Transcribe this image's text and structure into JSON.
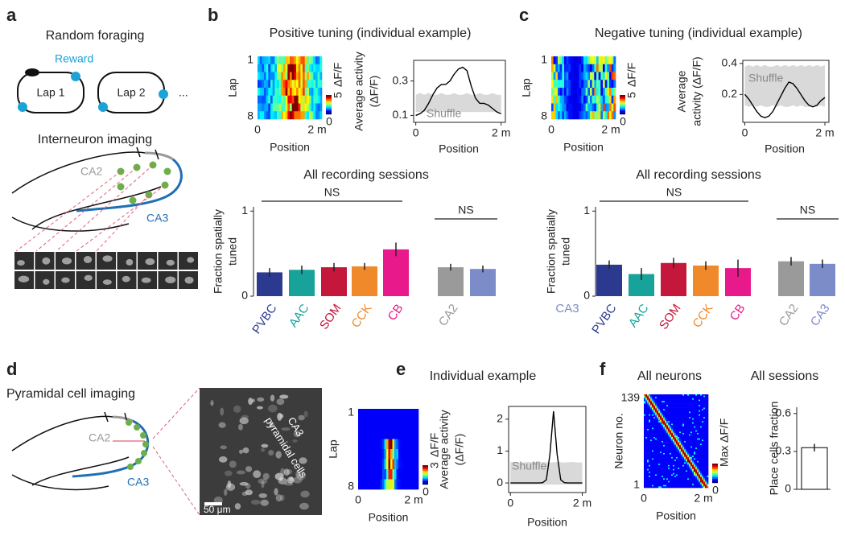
{
  "panel_labels": [
    "a",
    "b",
    "c",
    "d",
    "e",
    "f"
  ],
  "panel_a": {
    "title": "Random foraging",
    "reward": "Reward",
    "laps": [
      "Lap 1",
      "Lap 2"
    ],
    "ellipsis": "...",
    "subtitle": "Interneuron imaging",
    "regions": [
      "CA2",
      "CA3"
    ]
  },
  "panel_b": {
    "title": "Positive tuning (individual example)",
    "heatmap": {
      "ylabel": "Lap",
      "yticks": [
        "1",
        "8"
      ],
      "xticks": [
        "0",
        "2 m"
      ],
      "xlabel": "Position",
      "colorbar": [
        "5",
        "ΔF/F",
        "0"
      ]
    }
  },
  "panel_c": {
    "title": "Negative tuning (individual example)",
    "heatmap": {
      "ylabel": "Lap",
      "yticks": [
        "1",
        "8"
      ],
      "xticks": [
        "0",
        "2 m"
      ],
      "xlabel": "Position",
      "colorbar": [
        "5",
        "ΔF/F",
        "0"
      ]
    }
  },
  "panel_d": {
    "title": "Pyramidal cell imaging",
    "regions": [
      "CA2",
      "CA3"
    ],
    "image_label": [
      "CA3",
      "pyramidal cells"
    ],
    "scale_bar": "50 μm"
  },
  "panel_e": {
    "title": "Individual example",
    "heatmap": {
      "ylabel": "Lap",
      "yticks": [
        "1",
        "8"
      ],
      "xticks": [
        "0",
        "2 m"
      ],
      "xlabel": "Position",
      "colorbar": [
        "3",
        "ΔF/F",
        "0"
      ]
    }
  },
  "panel_f": {
    "title": "All neurons",
    "heatmap": {
      "ylabel": "Neuron no.",
      "yticks": [
        "139",
        "1"
      ],
      "xticks": [
        "0",
        "2 m"
      ],
      "xlabel": "Position",
      "colorbar": [
        "Max",
        "ΔF/F",
        "0"
      ]
    }
  },
  "chart_data": [
    {
      "type": "line",
      "ylabel": [
        "Average activity",
        "(ΔF/F)"
      ],
      "xlabel": "Position",
      "x": [
        0,
        0.1,
        0.2,
        0.3,
        0.4,
        0.5,
        0.6,
        0.7,
        0.8,
        0.9,
        1.0,
        1.1,
        1.2,
        1.3,
        1.4,
        1.5,
        1.6,
        1.7,
        1.8,
        1.9,
        2.0
      ],
      "series": [
        {
          "color": "#000000",
          "values": [
            0.1,
            0.11,
            0.13,
            0.17,
            0.22,
            0.26,
            0.28,
            0.28,
            0.3,
            0.34,
            0.37,
            0.38,
            0.36,
            0.27,
            0.2,
            0.17,
            0.17,
            0.16,
            0.14,
            0.12,
            0.11
          ]
        }
      ],
      "band": {
        "name": "Shuffle",
        "color": "#d9d9d9",
        "lower": [
          0.12,
          0.12,
          0.12,
          0.12,
          0.12,
          0.12,
          0.12,
          0.12,
          0.12,
          0.12,
          0.12,
          0.12,
          0.12,
          0.12,
          0.12,
          0.12,
          0.12,
          0.12,
          0.12,
          0.12,
          0.12
        ],
        "upper": [
          0.22,
          0.23,
          0.22,
          0.23,
          0.22,
          0.22,
          0.23,
          0.22,
          0.22,
          0.23,
          0.22,
          0.22,
          0.23,
          0.22,
          0.22,
          0.23,
          0.22,
          0.22,
          0.23,
          0.22,
          0.22
        ]
      },
      "xlim": [
        -0.05,
        2.1
      ],
      "ylim": [
        0.06,
        0.42
      ],
      "xticks": [
        0,
        {
          "value": 2,
          "label": "2 m"
        }
      ],
      "yticks": [
        0.1,
        0.3
      ]
    },
    {
      "type": "bar",
      "title": "All recording sessions",
      "ylabel": [
        "Fraction spatially",
        "tuned"
      ],
      "categories": [
        "PVBC",
        "AAC",
        "SOM",
        "CCK",
        "CB",
        "CA2",
        null
      ],
      "values": [
        0.28,
        0.31,
        0.34,
        0.35,
        0.55,
        0.34,
        0.32
      ],
      "errors": [
        0.05,
        0.05,
        0.05,
        0.04,
        0.08,
        0.04,
        0.04
      ],
      "colors": [
        "#2b3a8f",
        "#17a39a",
        "#c4173b",
        "#f0892a",
        "#e8198b",
        "#9a9a9a",
        "#7b8cc8"
      ],
      "ylim": [
        0,
        1.05
      ],
      "yticks": [
        0,
        1
      ],
      "annotations": [
        "NS",
        "NS"
      ]
    },
    {
      "type": "line",
      "ylabel": [
        "Average",
        "activity (ΔF/F)"
      ],
      "xlabel": "Position",
      "x": [
        0,
        0.1,
        0.2,
        0.3,
        0.4,
        0.5,
        0.6,
        0.7,
        0.8,
        0.9,
        1.0,
        1.1,
        1.2,
        1.3,
        1.4,
        1.5,
        1.6,
        1.7,
        1.8,
        1.9,
        2.0
      ],
      "series": [
        {
          "color": "#000000",
          "values": [
            0.2,
            0.17,
            0.13,
            0.09,
            0.06,
            0.05,
            0.06,
            0.09,
            0.14,
            0.19,
            0.24,
            0.28,
            0.27,
            0.24,
            0.2,
            0.16,
            0.13,
            0.12,
            0.13,
            0.16,
            0.18
          ]
        }
      ],
      "band": {
        "name": "Shuffle",
        "color": "#d9d9d9",
        "lower": [
          0.13,
          0.12,
          0.13,
          0.12,
          0.13,
          0.12,
          0.12,
          0.13,
          0.12,
          0.13,
          0.12,
          0.12,
          0.13,
          0.12,
          0.13,
          0.12,
          0.12,
          0.13,
          0.12,
          0.13,
          0.12
        ],
        "upper": [
          0.38,
          0.39,
          0.38,
          0.39,
          0.38,
          0.39,
          0.38,
          0.38,
          0.39,
          0.38,
          0.39,
          0.38,
          0.39,
          0.38,
          0.39,
          0.38,
          0.39,
          0.38,
          0.39,
          0.38,
          0.39
        ]
      },
      "xlim": [
        -0.05,
        2.1
      ],
      "ylim": [
        0.02,
        0.42
      ],
      "xticks": [
        0,
        {
          "value": 2,
          "label": "2 m"
        }
      ],
      "yticks": [
        0.2,
        0.4
      ]
    },
    {
      "type": "bar",
      "title": "All recording sessions",
      "ylabel": [
        "Fraction spatially",
        "tuned"
      ],
      "group_label": "CA3",
      "categories": [
        "PVBC",
        "AAC",
        "SOM",
        "CCK",
        "CB",
        "CA2",
        "CA3"
      ],
      "values": [
        0.37,
        0.26,
        0.39,
        0.36,
        0.33,
        0.41,
        0.38
      ],
      "errors": [
        0.05,
        0.07,
        0.06,
        0.05,
        0.1,
        0.05,
        0.05
      ],
      "colors": [
        "#2b3a8f",
        "#17a39a",
        "#c4173b",
        "#f0892a",
        "#e8198b",
        "#9a9a9a",
        "#7b8cc8"
      ],
      "ylim": [
        0,
        1.05
      ],
      "yticks": [
        0,
        1
      ],
      "annotations": [
        "NS",
        "NS"
      ]
    },
    {
      "type": "line",
      "ylabel": [
        "Average activity",
        "(ΔF/F)"
      ],
      "xlabel": "Position",
      "x": [
        0,
        0.1,
        0.2,
        0.3,
        0.4,
        0.5,
        0.6,
        0.7,
        0.8,
        0.9,
        1.0,
        1.1,
        1.2,
        1.3,
        1.4,
        1.5,
        1.6,
        1.7,
        1.8,
        1.9,
        2.0
      ],
      "series": [
        {
          "color": "#000000",
          "values": [
            0,
            0,
            0,
            0,
            0,
            0,
            0,
            0,
            0,
            0.01,
            0.1,
            0.9,
            2.25,
            0.9,
            0.1,
            0.01,
            0,
            0,
            0,
            0,
            0
          ]
        }
      ],
      "band": {
        "name": "Shuffle",
        "color": "#d9d9d9",
        "lower": [
          -0.05,
          -0.05,
          -0.05,
          -0.05,
          -0.05,
          -0.05,
          -0.05,
          -0.05,
          -0.05,
          -0.05,
          -0.05,
          -0.05,
          -0.05,
          -0.05,
          -0.05,
          -0.05,
          -0.05,
          -0.05,
          -0.05,
          -0.05,
          -0.05
        ],
        "upper": [
          0.65,
          0.66,
          0.65,
          0.64,
          0.65,
          0.66,
          0.65,
          0.64,
          0.65,
          0.66,
          0.65,
          0.64,
          0.65,
          0.66,
          0.65,
          0.64,
          0.65,
          0.66,
          0.65,
          0.64,
          0.65
        ]
      },
      "xlim": [
        -0.05,
        2.1
      ],
      "ylim": [
        -0.3,
        2.4
      ],
      "xticks": [
        0,
        {
          "value": 2,
          "label": "2 m"
        }
      ],
      "yticks": [
        0,
        1,
        2
      ]
    },
    {
      "type": "bar",
      "title": "All sessions",
      "ylabel": [
        "Place cells fraction"
      ],
      "categories": [
        null
      ],
      "values": [
        0.33
      ],
      "errors": [
        0.03
      ],
      "colors": [
        "#ffffff"
      ],
      "edgecolor": "#000000",
      "ylim": [
        0,
        0.65
      ],
      "yticks": [
        0,
        0.3,
        0.6
      ]
    }
  ]
}
